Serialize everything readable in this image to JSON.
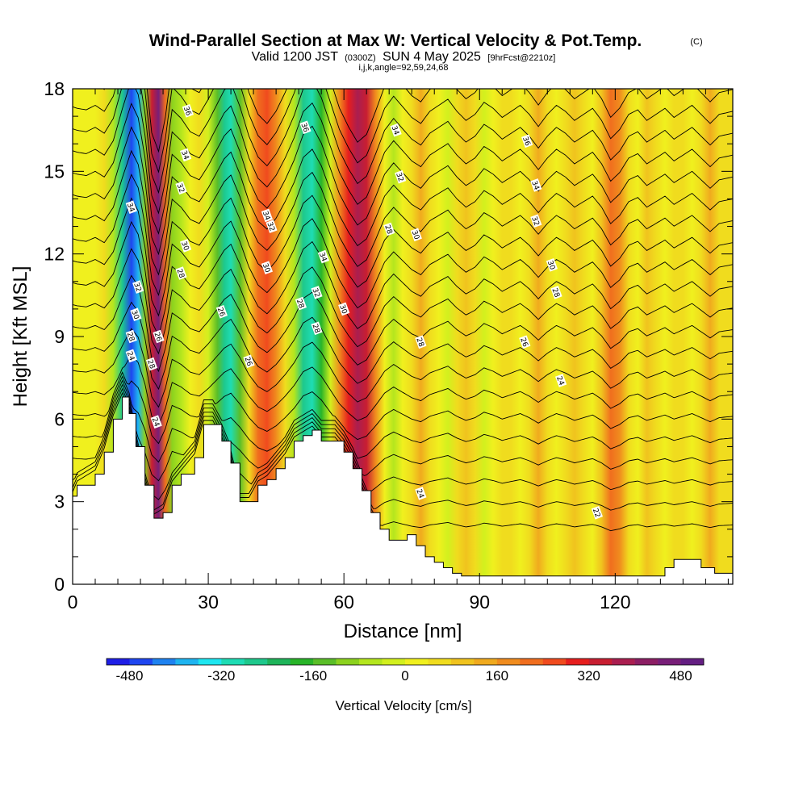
{
  "title": {
    "main": "Wind-Parallel Section at Max W: Vertical Velocity & Pot.Temp.",
    "copyright": "(C)",
    "valid_prefix": "Valid 1200 JST",
    "valid_utc": "(0300Z)",
    "valid_date": "SUN 4 May 2025",
    "forecast": "[9hrFcst@2210z]",
    "indices": "i,j,k,angle=92,59,24,68"
  },
  "chart_data": {
    "type": "heatmap",
    "xlabel": "Distance [nm]",
    "ylabel": "Height [Kft MSL]",
    "xlim": [
      0,
      146
    ],
    "ylim": [
      0,
      18
    ],
    "x_ticks": [
      "0",
      "30",
      "60",
      "90",
      "120"
    ],
    "y_ticks": [
      "0",
      "3",
      "6",
      "9",
      "12",
      "15",
      "18"
    ],
    "colorbar": {
      "title": "Vertical Velocity [cm/s]",
      "tick_labels": [
        "-480",
        "-320",
        "-160",
        "0",
        "160",
        "320",
        "480"
      ],
      "colors": [
        "#1e1ee6",
        "#1e46f0",
        "#1e82f0",
        "#1eb4f0",
        "#1ee6f0",
        "#1edcb4",
        "#1ec88c",
        "#1eb45a",
        "#28b428",
        "#5abe28",
        "#8cd21e",
        "#b4e61e",
        "#d2f01e",
        "#f0f01e",
        "#f0dc1e",
        "#f0c31e",
        "#f0aa1e",
        "#f08c1e",
        "#f06e1e",
        "#f04b1e",
        "#e61e1e",
        "#c81e32",
        "#aa1e50",
        "#8c1e64",
        "#781e78",
        "#641e82"
      ]
    },
    "vertical_velocity_columns": [
      {
        "x": 0,
        "w": 10
      },
      {
        "x": 1,
        "w": 20
      },
      {
        "x": 3,
        "w": 30
      },
      {
        "x": 5,
        "w": 0
      },
      {
        "x": 7,
        "w": 40
      },
      {
        "x": 9,
        "w": -60
      },
      {
        "x": 11,
        "w": -280
      },
      {
        "x": 13,
        "w": -480
      },
      {
        "x": 14.5,
        "w": -380
      },
      {
        "x": 16,
        "w": -100
      },
      {
        "x": 17.5,
        "w": 320
      },
      {
        "x": 19,
        "w": 440
      },
      {
        "x": 20.5,
        "w": 220
      },
      {
        "x": 22,
        "w": -120
      },
      {
        "x": 24,
        "w": -60
      },
      {
        "x": 26,
        "w": 30
      },
      {
        "x": 28,
        "w": 60
      },
      {
        "x": 30,
        "w": -40
      },
      {
        "x": 32,
        "w": -160
      },
      {
        "x": 33.5,
        "w": -250
      },
      {
        "x": 35,
        "w": -300
      },
      {
        "x": 37,
        "w": -140
      },
      {
        "x": 39,
        "w": 60
      },
      {
        "x": 41,
        "w": 200
      },
      {
        "x": 43,
        "w": 260
      },
      {
        "x": 45,
        "w": 180
      },
      {
        "x": 47,
        "w": 60
      },
      {
        "x": 49,
        "w": -80
      },
      {
        "x": 51,
        "w": -260
      },
      {
        "x": 53,
        "w": -320
      },
      {
        "x": 55,
        "w": -200
      },
      {
        "x": 57,
        "w": -20
      },
      {
        "x": 59,
        "w": 160
      },
      {
        "x": 61,
        "w": 280
      },
      {
        "x": 63,
        "w": 380
      },
      {
        "x": 65,
        "w": 330
      },
      {
        "x": 67,
        "w": 180
      },
      {
        "x": 69,
        "w": 20
      },
      {
        "x": 71,
        "w": -60
      },
      {
        "x": 73,
        "w": 10
      },
      {
        "x": 75,
        "w": 80
      },
      {
        "x": 77,
        "w": 120
      },
      {
        "x": 79,
        "w": 40
      },
      {
        "x": 81,
        "w": 0
      },
      {
        "x": 83,
        "w": -40
      },
      {
        "x": 85,
        "w": 40
      },
      {
        "x": 87,
        "w": 100
      },
      {
        "x": 89,
        "w": 60
      },
      {
        "x": 91,
        "w": -20
      },
      {
        "x": 93,
        "w": 20
      },
      {
        "x": 95,
        "w": 80
      },
      {
        "x": 97,
        "w": 40
      },
      {
        "x": 99,
        "w": 0
      },
      {
        "x": 101,
        "w": 60
      },
      {
        "x": 103,
        "w": 140
      },
      {
        "x": 105,
        "w": 60
      },
      {
        "x": 107,
        "w": 0
      },
      {
        "x": 109,
        "w": 40
      },
      {
        "x": 111,
        "w": 100
      },
      {
        "x": 113,
        "w": 60
      },
      {
        "x": 115,
        "w": 20
      },
      {
        "x": 117,
        "w": 100
      },
      {
        "x": 119,
        "w": 220
      },
      {
        "x": 121,
        "w": 160
      },
      {
        "x": 123,
        "w": 60
      },
      {
        "x": 125,
        "w": 30
      },
      {
        "x": 127,
        "w": 100
      },
      {
        "x": 129,
        "w": 60
      },
      {
        "x": 131,
        "w": 20
      },
      {
        "x": 133,
        "w": 80
      },
      {
        "x": 135,
        "w": 40
      },
      {
        "x": 137,
        "w": 0
      },
      {
        "x": 139,
        "w": 60
      },
      {
        "x": 141,
        "w": 120
      },
      {
        "x": 143,
        "w": 60
      },
      {
        "x": 146,
        "w": 40
      }
    ],
    "terrain": [
      {
        "x": 0,
        "h": 3.2
      },
      {
        "x": 1,
        "h": 3.6
      },
      {
        "x": 5,
        "h": 4.0
      },
      {
        "x": 7,
        "h": 4.8
      },
      {
        "x": 9,
        "h": 6.0
      },
      {
        "x": 11,
        "h": 6.8
      },
      {
        "x": 12.5,
        "h": 6.2
      },
      {
        "x": 14,
        "h": 5.0
      },
      {
        "x": 16,
        "h": 3.6
      },
      {
        "x": 18,
        "h": 2.4
      },
      {
        "x": 20,
        "h": 2.6
      },
      {
        "x": 22,
        "h": 3.6
      },
      {
        "x": 24,
        "h": 4.0
      },
      {
        "x": 27,
        "h": 4.6
      },
      {
        "x": 29,
        "h": 5.8
      },
      {
        "x": 31,
        "h": 5.8
      },
      {
        "x": 33,
        "h": 5.2
      },
      {
        "x": 35,
        "h": 4.4
      },
      {
        "x": 37,
        "h": 3.0
      },
      {
        "x": 39,
        "h": 3.0
      },
      {
        "x": 41,
        "h": 3.6
      },
      {
        "x": 43,
        "h": 3.8
      },
      {
        "x": 45,
        "h": 4.2
      },
      {
        "x": 47,
        "h": 4.6
      },
      {
        "x": 49,
        "h": 5.2
      },
      {
        "x": 51,
        "h": 5.4
      },
      {
        "x": 53,
        "h": 5.6
      },
      {
        "x": 55,
        "h": 5.2
      },
      {
        "x": 58,
        "h": 5.2
      },
      {
        "x": 60,
        "h": 4.8
      },
      {
        "x": 62,
        "h": 4.2
      },
      {
        "x": 64,
        "h": 3.4
      },
      {
        "x": 66,
        "h": 2.6
      },
      {
        "x": 68,
        "h": 2.0
      },
      {
        "x": 70,
        "h": 1.6
      },
      {
        "x": 72,
        "h": 1.6
      },
      {
        "x": 74,
        "h": 1.8
      },
      {
        "x": 76,
        "h": 1.4
      },
      {
        "x": 78,
        "h": 1.0
      },
      {
        "x": 80,
        "h": 0.8
      },
      {
        "x": 82,
        "h": 0.6
      },
      {
        "x": 84,
        "h": 0.4
      },
      {
        "x": 86,
        "h": 0.3
      },
      {
        "x": 100,
        "h": 0.3
      },
      {
        "x": 115,
        "h": 0.3
      },
      {
        "x": 128,
        "h": 0.3
      },
      {
        "x": 131,
        "h": 0.6
      },
      {
        "x": 133,
        "h": 0.9
      },
      {
        "x": 137,
        "h": 0.9
      },
      {
        "x": 139,
        "h": 0.6
      },
      {
        "x": 142,
        "h": 0.4
      },
      {
        "x": 146,
        "h": 0.4
      }
    ],
    "contour_labels": [
      {
        "text": "36",
        "x": 25.5,
        "y": 17.2
      },
      {
        "text": "34",
        "x": 25,
        "y": 15.6
      },
      {
        "text": "32",
        "x": 24,
        "y": 14.4
      },
      {
        "text": "30",
        "x": 25,
        "y": 12.3
      },
      {
        "text": "28",
        "x": 24,
        "y": 11.3
      },
      {
        "text": "34",
        "x": 13,
        "y": 13.7
      },
      {
        "text": "32",
        "x": 14.5,
        "y": 10.8
      },
      {
        "text": "30",
        "x": 14,
        "y": 9.8
      },
      {
        "text": "28",
        "x": 13,
        "y": 9.0
      },
      {
        "text": "26",
        "x": 19,
        "y": 9.0
      },
      {
        "text": "24",
        "x": 13,
        "y": 8.3
      },
      {
        "text": "28",
        "x": 17.5,
        "y": 8.0
      },
      {
        "text": "24",
        "x": 18.5,
        "y": 5.9
      },
      {
        "text": "26",
        "x": 33,
        "y": 9.9
      },
      {
        "text": "26",
        "x": 39,
        "y": 8.1
      },
      {
        "text": "34",
        "x": 43,
        "y": 13.4
      },
      {
        "text": "32",
        "x": 44,
        "y": 13.0
      },
      {
        "text": "30",
        "x": 43,
        "y": 11.5
      },
      {
        "text": "36",
        "x": 51.5,
        "y": 16.6
      },
      {
        "text": "34",
        "x": 55.5,
        "y": 11.9
      },
      {
        "text": "32",
        "x": 54,
        "y": 10.6
      },
      {
        "text": "28",
        "x": 50.5,
        "y": 10.2
      },
      {
        "text": "28",
        "x": 54,
        "y": 9.3
      },
      {
        "text": "30",
        "x": 60,
        "y": 10.0
      },
      {
        "text": "34",
        "x": 71.5,
        "y": 16.5
      },
      {
        "text": "32",
        "x": 72.5,
        "y": 14.8
      },
      {
        "text": "28",
        "x": 70,
        "y": 12.9
      },
      {
        "text": "30",
        "x": 76,
        "y": 12.7
      },
      {
        "text": "28",
        "x": 77,
        "y": 8.8
      },
      {
        "text": "24",
        "x": 77,
        "y": 3.3
      },
      {
        "text": "36",
        "x": 100.5,
        "y": 16.1
      },
      {
        "text": "34",
        "x": 102.5,
        "y": 14.5
      },
      {
        "text": "32",
        "x": 102.5,
        "y": 13.2
      },
      {
        "text": "30",
        "x": 106,
        "y": 11.6
      },
      {
        "text": "28",
        "x": 107,
        "y": 10.6
      },
      {
        "text": "26",
        "x": 100,
        "y": 8.8
      },
      {
        "text": "24",
        "x": 108,
        "y": 7.4
      },
      {
        "text": "22",
        "x": 116,
        "y": 2.6
      }
    ],
    "grid": false,
    "legend": "colorbar-bottom"
  }
}
